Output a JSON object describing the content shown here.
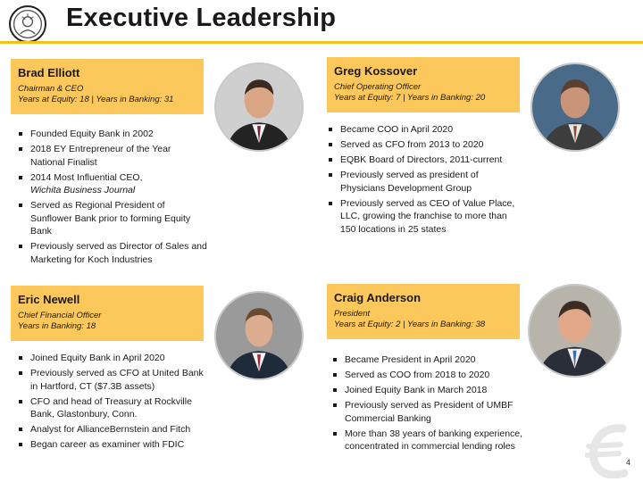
{
  "title": "Executive Leadership",
  "page_number": "4",
  "colors": {
    "accent": "#fcc85c",
    "rule": "#f2c21b"
  },
  "executives": [
    {
      "name": "Brad Elliott",
      "role": "Chairman & CEO",
      "tenure": "Years at Equity: 18 | Years in Banking: 31",
      "bullets": [
        "Founded Equity Bank in 2002",
        "2018 EY Entrepreneur of the Year National Finalist",
        "2014 Most Influential CEO,",
        "Served as Regional President of Sunflower Bank prior to forming Equity Bank",
        "Previously served as Director of Sales and Marketing for Koch Industries"
      ],
      "bullet_3_sub": "Wichita Business Journal"
    },
    {
      "name": "Greg Kossover",
      "role": "Chief Operating Officer",
      "tenure": "Years at Equity: 7 | Years in Banking: 20",
      "bullets": [
        "Became COO in April 2020",
        "Served as CFO from 2013 to 2020",
        "EQBK Board of Directors, 2011-current",
        "Previously served as president of Physicians Development Group",
        "Previously served as CEO of Value Place, LLC, growing the franchise to more than 150 locations in 25 states"
      ]
    },
    {
      "name": "Eric Newell",
      "role": "Chief Financial Officer",
      "tenure": "Years in Banking: 18",
      "bullets": [
        "Joined Equity Bank in April 2020",
        "Previously served as CFO at United Bank in Hartford, CT ($7.3B assets)",
        "CFO and head of Treasury at Rockville Bank, Glastonbury, Conn.",
        "Analyst for AllianceBernstein and Fitch",
        "Began career as examiner with FDIC"
      ]
    },
    {
      "name": "Craig Anderson",
      "role": "President",
      "tenure": "Years at Equity: 2 | Years in Banking: 38",
      "bullets": [
        "Became President in April 2020",
        "Served as COO from 2018 to 2020",
        "Joined Equity Bank in March 2018",
        "Previously served as President of UMBF Commercial Banking",
        "More than 38 years of banking experience, concentrated in commercial lending roles"
      ]
    }
  ]
}
